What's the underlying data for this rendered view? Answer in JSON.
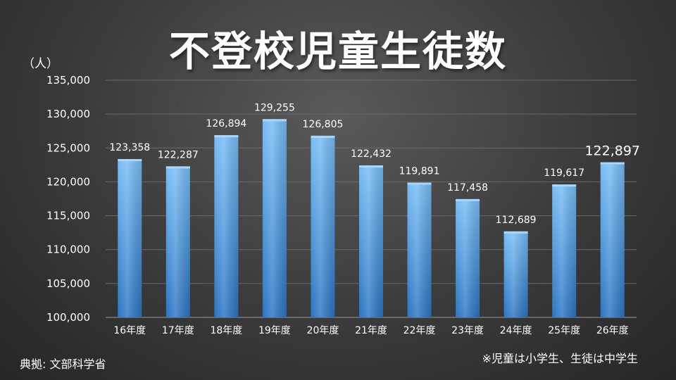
{
  "title": "不登校児童生徒数",
  "unit_label": "（人）",
  "source": "典拠: 文部科学省",
  "note": "※児童は小学生、生徒は中学生",
  "colors": {
    "bar_top": "#6cb4f2",
    "bar_bottom": "#2a78c8",
    "grid": "#6a6a6a"
  },
  "chart_data": {
    "type": "bar",
    "title": "不登校児童生徒数",
    "ylabel": "（人）",
    "ylim": [
      100000,
      135000
    ],
    "yticks": [
      "100,000",
      "105,000",
      "110,000",
      "115,000",
      "120,000",
      "125,000",
      "130,000",
      "135,000"
    ],
    "categories": [
      "16年度",
      "17年度",
      "18年度",
      "19年度",
      "20年度",
      "21年度",
      "22年度",
      "23年度",
      "24年度",
      "25年度",
      "26年度"
    ],
    "values": [
      123358,
      122287,
      126894,
      129255,
      126805,
      122432,
      119891,
      117458,
      112689,
      119617,
      122897
    ],
    "value_labels": [
      "123,358",
      "122,287",
      "126,894",
      "129,255",
      "126,805",
      "122,432",
      "119,891",
      "117,458",
      "112,689",
      "119,617",
      "122,897"
    ],
    "highlight_last": true,
    "grid": true,
    "legend": "none"
  }
}
